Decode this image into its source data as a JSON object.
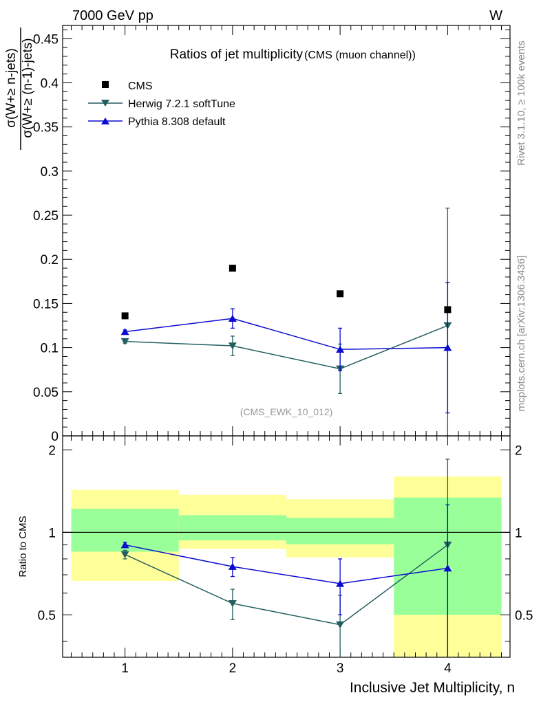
{
  "header": {
    "left": "7000 GeV pp",
    "right": "W"
  },
  "side_labels": {
    "rivet": "Rivet 3.1.10, ≥ 100k events",
    "mcplots": "mcplots.cern.ch [arXiv:1306.3436]"
  },
  "chart_data": {
    "type": "scatter",
    "title": "Ratios of jet multiplicity",
    "subtitle": "(CMS (muon channel))",
    "watermark": "(CMS_EWK_10_012)",
    "ylabel_numerator": "σ(W+≥ n-jets)",
    "ylabel_denominator": "σ(W+≥ (n-1)-jets)",
    "xlabel": "Inclusive Jet Multiplicity, n",
    "ratio_ylabel": "Ratio to CMS",
    "x": [
      1,
      2,
      3,
      4
    ],
    "x_tick_labels": [
      "1",
      "2",
      "3",
      "4"
    ],
    "xlim": [
      0.42,
      4.58
    ],
    "ylim": [
      0,
      0.465
    ],
    "y_tick_labels": [
      "0",
      "0.05",
      "0.1",
      "0.15",
      "0.2",
      "0.25",
      "0.3",
      "0.35",
      "0.4",
      "0.45"
    ],
    "ratio_ylim": [
      0.35,
      2.25
    ],
    "ratio_tick_labels": [
      "0.5",
      "1",
      "2"
    ],
    "legend_position": "top-left",
    "grid": false,
    "series": [
      {
        "name": "CMS",
        "marker": "square",
        "color": "#000000",
        "values": [
          0.136,
          0.19,
          0.161,
          0.143
        ],
        "ratio_band_inner": [
          [
            0.85,
            1.22
          ],
          [
            0.935,
            1.155
          ],
          [
            0.905,
            1.13
          ],
          [
            0.5,
            1.34
          ]
        ],
        "ratio_band_outer": [
          [
            0.665,
            1.43
          ],
          [
            0.87,
            1.37
          ],
          [
            0.81,
            1.32
          ],
          [
            0.34,
            1.6
          ]
        ]
      },
      {
        "name": "Herwig 7.2.1 softTune",
        "marker": "triangle-down",
        "color": "#225e60",
        "values": [
          0.107,
          0.102,
          0.076,
          0.125
        ],
        "errors": [
          0.002,
          0.011,
          0.028,
          0.133
        ],
        "ratio": [
          0.83,
          0.55,
          0.46,
          0.9
        ],
        "ratio_errors": [
          0.03,
          0.07,
          0.13,
          0.95
        ]
      },
      {
        "name": "Pythia 8.308 default",
        "marker": "triangle-up",
        "color": "#0a0ad0",
        "values": [
          0.118,
          0.133,
          0.098,
          0.1
        ],
        "errors": [
          0.002,
          0.011,
          0.024,
          0.074
        ],
        "ratio": [
          0.9,
          0.75,
          0.65,
          0.74
        ],
        "ratio_errors": [
          0.02,
          0.06,
          0.15,
          0.52
        ]
      }
    ]
  },
  "colors": {
    "band_outer": "#ffff99",
    "band_inner": "#99ff99",
    "side_text": "#888888",
    "watermark": "#999999"
  }
}
